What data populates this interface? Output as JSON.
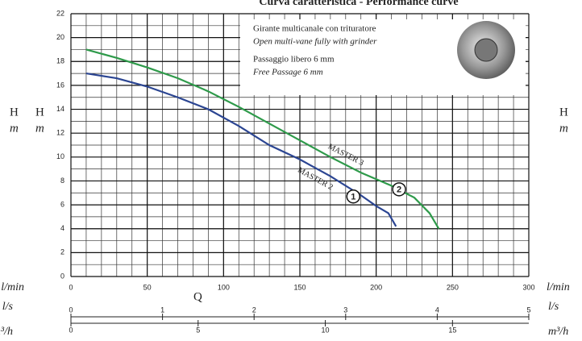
{
  "chart_data": {
    "type": "line",
    "title": "Curva caratteristica - Performance curve",
    "x_label": "Q",
    "y_label": {
      "symbol": "H",
      "unit": "m"
    },
    "x_unit": "l/min",
    "xlim": [
      0,
      300
    ],
    "xticks": [
      0,
      50,
      100,
      150,
      200,
      250,
      300
    ],
    "ylim": [
      0,
      22
    ],
    "yticks": [
      0,
      2,
      4,
      6,
      8,
      10,
      12,
      14,
      16,
      18,
      20,
      22
    ],
    "grid": true,
    "grid_minor": {
      "x": 10,
      "y": 1
    },
    "secondary_x_axes": [
      {
        "unit": "l/s",
        "lim": [
          0,
          5
        ],
        "ticks": [
          0,
          1,
          2,
          3,
          4,
          5
        ]
      },
      {
        "unit": "m³/h",
        "lim": [
          0,
          18
        ],
        "ticks": [
          0,
          5,
          10,
          15
        ]
      }
    ],
    "series": [
      {
        "name": "MASTER 2",
        "color": "#2b4592",
        "x": [
          10,
          30,
          50,
          70,
          90,
          110,
          130,
          150,
          170,
          190,
          200,
          208,
          213
        ],
        "values": [
          17,
          16.6,
          15.9,
          15,
          14,
          12.6,
          11,
          9.8,
          8.4,
          6.8,
          5.9,
          5.3,
          4.2
        ]
      },
      {
        "name": "MASTER 3",
        "color": "#2e9a4a",
        "x": [
          10,
          30,
          50,
          70,
          90,
          110,
          130,
          150,
          170,
          190,
          210,
          225,
          235,
          241
        ],
        "values": [
          19,
          18.3,
          17.5,
          16.6,
          15.5,
          14.2,
          12.8,
          11.4,
          10,
          8.7,
          7.6,
          6.6,
          5.3,
          4
        ]
      }
    ],
    "markers": [
      {
        "label": "1",
        "x": 185,
        "y": 6.7
      },
      {
        "label": "2",
        "x": 215,
        "y": 7.3
      }
    ],
    "info_box": [
      "Girante multicanale con trituratore",
      "Open multi-vane fully with grinder",
      "Passaggio libero 6 mm",
      "Free Passage 6 mm"
    ]
  }
}
